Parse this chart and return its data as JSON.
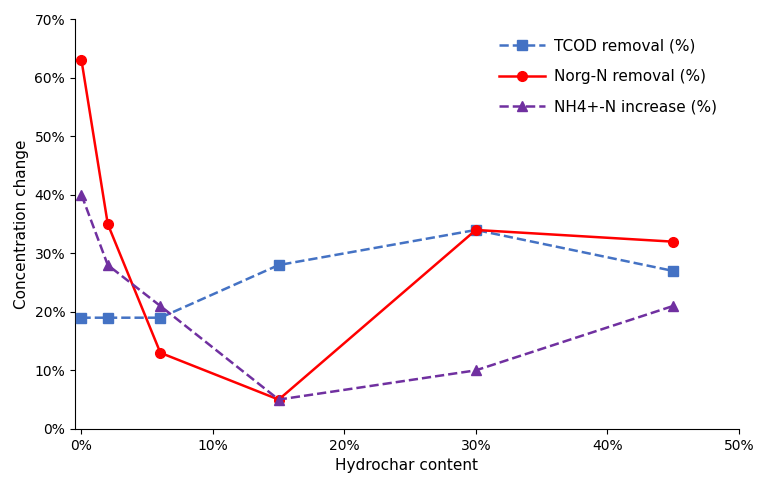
{
  "x_values": [
    0,
    0.02,
    0.06,
    0.15,
    0.3,
    0.45
  ],
  "tcod_removal": [
    0.19,
    0.19,
    0.19,
    0.28,
    0.34,
    0.27
  ],
  "norg_removal": [
    0.63,
    0.35,
    0.13,
    0.05,
    0.34,
    0.32
  ],
  "nh4_increase": [
    0.4,
    0.28,
    0.21,
    0.05,
    0.1,
    0.21
  ],
  "tcod_color": "#4472C4",
  "norg_color": "#FF0000",
  "nh4_color": "#7030A0",
  "xlabel": "Hydrochar content",
  "ylabel": "Concentration change",
  "ylim": [
    0,
    0.7
  ],
  "xlim": [
    -0.005,
    0.5
  ],
  "xticks": [
    0,
    0.1,
    0.2,
    0.3,
    0.4,
    0.5
  ],
  "yticks": [
    0,
    0.1,
    0.2,
    0.3,
    0.4,
    0.5,
    0.6,
    0.7
  ],
  "legend_tcod": "TCOD removal (%)",
  "legend_norg": "Norg-N removal (%)",
  "legend_nh4": "NH4+-N increase (%)"
}
